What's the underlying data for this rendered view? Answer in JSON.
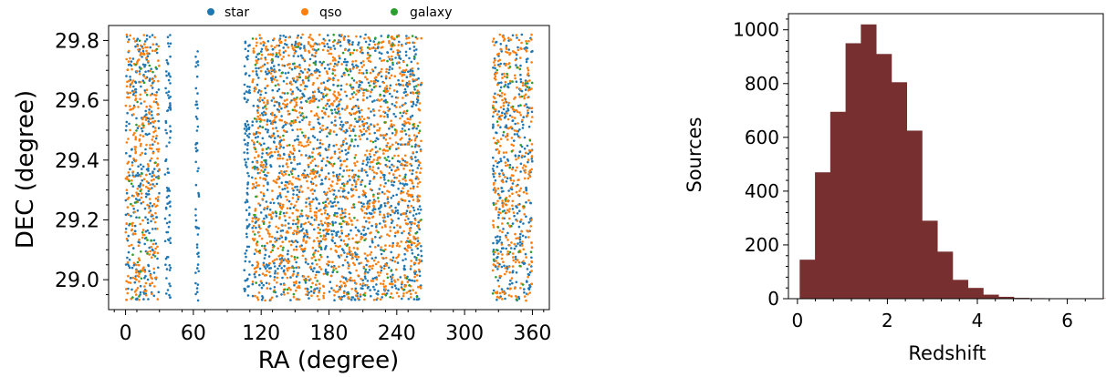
{
  "chart_data": [
    {
      "type": "scatter",
      "xlabel": "RA (degree)",
      "ylabel": "DEC (degree)",
      "xlim": [
        -15,
        375
      ],
      "ylim": [
        28.9,
        29.85
      ],
      "xticks": [
        "0",
        "60",
        "120",
        "180",
        "240",
        "300",
        "360"
      ],
      "xtick_values": [
        0,
        60,
        120,
        180,
        240,
        300,
        360
      ],
      "yticks": [
        "29.0",
        "29.2",
        "29.4",
        "29.6",
        "29.8"
      ],
      "ytick_values": [
        29.0,
        29.2,
        29.4,
        29.6,
        29.8
      ],
      "legend_position": "top-center, outside",
      "series": [
        {
          "name": "star",
          "color": "#1f77b4",
          "ra_ranges": [
            [
              0,
              30
            ],
            [
              35,
              40
            ],
            [
              62,
              65
            ],
            [
              105,
              110
            ],
            [
              112,
              262
            ],
            [
              325,
              360
            ]
          ],
          "dec_range": [
            28.93,
            29.82
          ]
        },
        {
          "name": "qso",
          "color": "#ff7f0e",
          "ra_ranges": [
            [
              0,
              30
            ],
            [
              112,
              262
            ],
            [
              325,
              360
            ]
          ],
          "dec_range": [
            28.93,
            29.82
          ]
        },
        {
          "name": "galaxy",
          "color": "#2ca02c",
          "ra_ranges": [
            [
              0,
              30
            ],
            [
              112,
              262
            ],
            [
              325,
              360
            ]
          ],
          "dec_range": [
            28.93,
            29.82
          ]
        }
      ]
    },
    {
      "type": "bar",
      "subtype": "histogram",
      "xlabel": "Redshift",
      "ylabel": "Sources",
      "xlim": [
        -0.2,
        6.8
      ],
      "ylim": [
        0,
        1060
      ],
      "xticks": [
        "0",
        "2",
        "4",
        "6"
      ],
      "xtick_values": [
        0,
        2,
        4,
        6
      ],
      "yticks": [
        "0",
        "200",
        "400",
        "600",
        "800",
        "1000"
      ],
      "ytick_values": [
        0,
        200,
        400,
        600,
        800,
        1000
      ],
      "color": "#772f2f",
      "bin_edges": [
        0.05,
        0.39,
        0.73,
        1.07,
        1.41,
        1.75,
        2.09,
        2.43,
        2.77,
        3.11,
        3.45,
        3.79,
        4.13,
        4.47,
        4.81,
        5.15,
        5.49,
        5.83,
        6.17,
        6.51,
        6.85
      ],
      "values": [
        145,
        470,
        695,
        950,
        1020,
        910,
        805,
        625,
        290,
        175,
        70,
        40,
        15,
        7,
        3,
        2,
        1,
        1,
        1,
        1
      ]
    }
  ]
}
